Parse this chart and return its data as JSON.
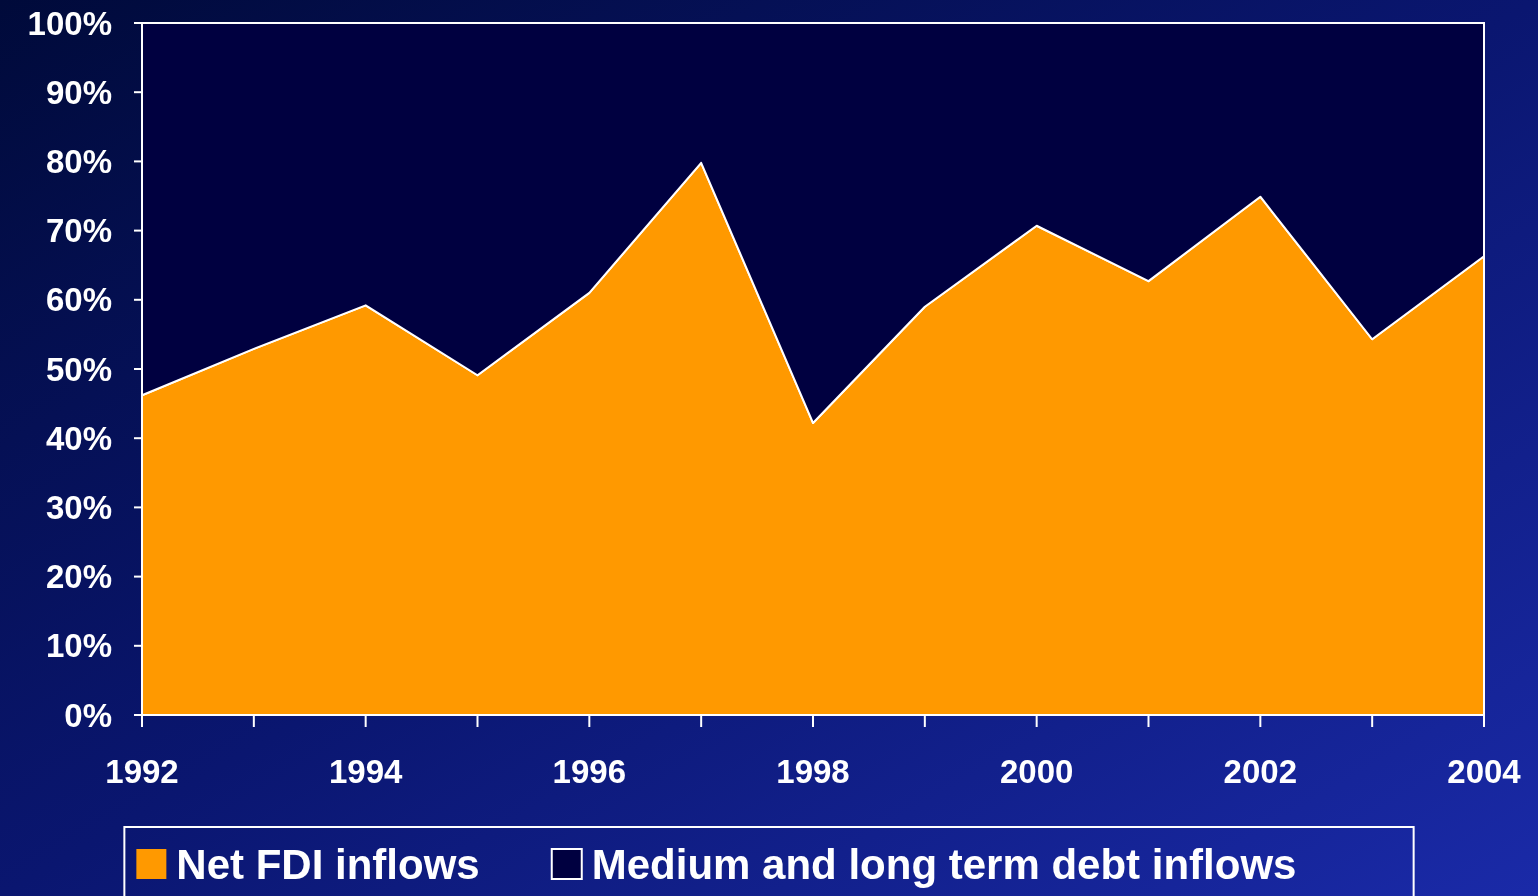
{
  "chart_data": {
    "type": "area",
    "stacked": true,
    "x": [
      1992,
      1993,
      1994,
      1995,
      1996,
      1997,
      1998,
      1999,
      2000,
      2001,
      2002,
      2003,
      2004
    ],
    "series": [
      {
        "name": "Net FDI inflows",
        "color": "#ff9900",
        "values": [
          46.2,
          52.9,
          59.2,
          49.1,
          61.0,
          79.8,
          42.2,
          59.0,
          70.7,
          62.7,
          74.9,
          54.3,
          66.3
        ]
      },
      {
        "name": "Medium and long term debt inflows",
        "color": "#000040",
        "values": [
          53.8,
          47.1,
          40.8,
          50.9,
          39.0,
          20.2,
          57.8,
          41.0,
          29.3,
          37.3,
          25.1,
          45.7,
          33.7
        ]
      }
    ],
    "xlim": [
      1992,
      2004
    ],
    "xticks": [
      1992,
      {
        "value": 1993,
        "label": null
      },
      1994,
      {
        "value": 1995,
        "label": null
      },
      1996,
      {
        "value": 1997,
        "label": null
      },
      1998,
      {
        "value": 1999,
        "label": null
      },
      2000,
      {
        "value": 2001,
        "label": null
      },
      2002,
      {
        "value": 2003,
        "label": null
      },
      2004
    ],
    "ylim": [
      0,
      100
    ],
    "yticks": [
      {
        "value": 0,
        "label": "0%"
      },
      {
        "value": 10,
        "label": "10%"
      },
      {
        "value": 20,
        "label": "20%"
      },
      {
        "value": 30,
        "label": "30%"
      },
      {
        "value": 40,
        "label": "40%"
      },
      {
        "value": 50,
        "label": "50%"
      },
      {
        "value": 60,
        "label": "60%"
      },
      {
        "value": 70,
        "label": "70%"
      },
      {
        "value": 80,
        "label": "80%"
      },
      {
        "value": 90,
        "label": "90%"
      },
      {
        "value": 100,
        "label": "100%"
      }
    ],
    "legend": "bottom"
  }
}
